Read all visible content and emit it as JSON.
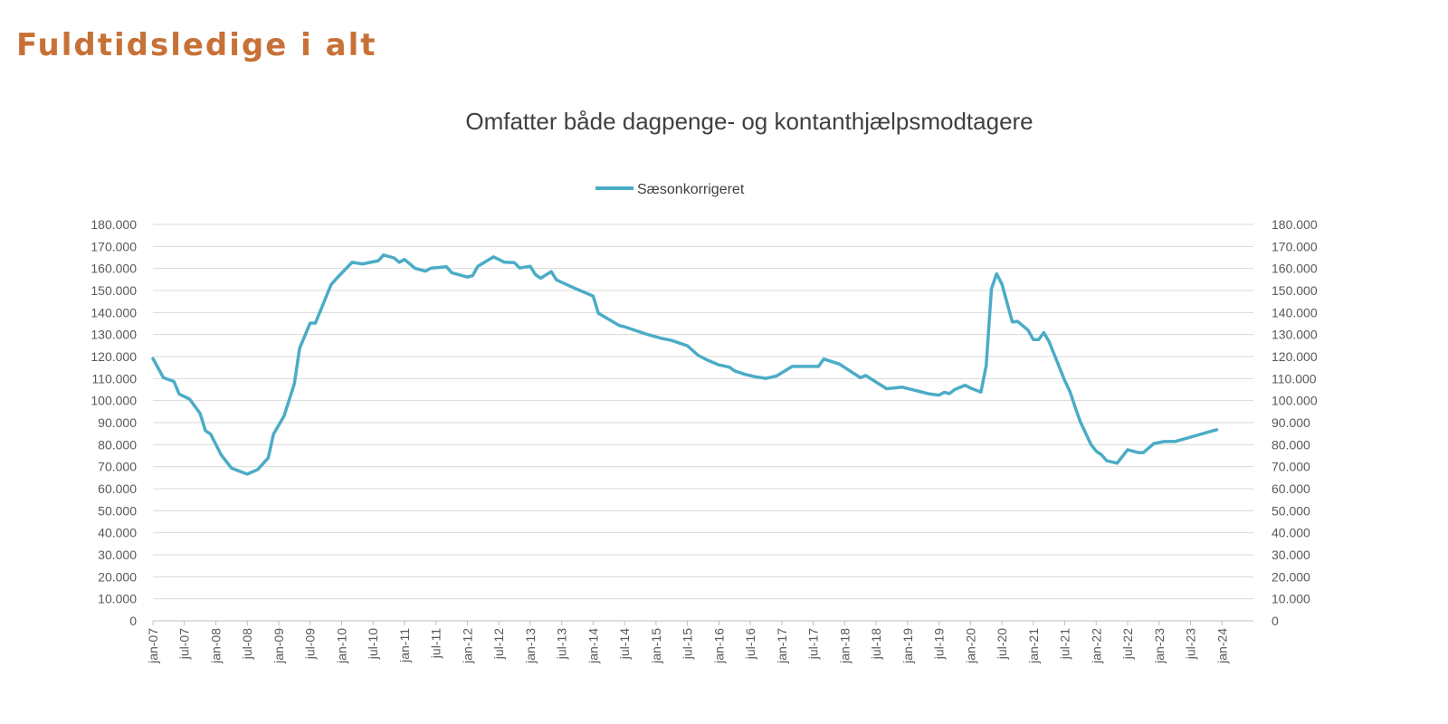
{
  "page": {
    "title": "Fuldtidsledige i alt",
    "title_color": "#C87137"
  },
  "chart_data": {
    "type": "line",
    "title": "Omfatter både dagpenge- og kontanthjælpsmodtagere",
    "xlabel": "",
    "ylabel": "",
    "ylim": [
      0,
      180000
    ],
    "y_ticks": [
      "0",
      "10.000",
      "20.000",
      "30.000",
      "40.000",
      "50.000",
      "60.000",
      "70.000",
      "80.000",
      "90.000",
      "100.000",
      "110.000",
      "120.000",
      "130.000",
      "140.000",
      "150.000",
      "160.000",
      "170.000",
      "180.000"
    ],
    "y_tick_step": 10000,
    "y_axis_both_sides": true,
    "x_ticks": [
      "jan-07",
      "jul-07",
      "jan-08",
      "jul-08",
      "jan-09",
      "jul-09",
      "jan-10",
      "jul-10",
      "jan-11",
      "jul-11",
      "jan-12",
      "jul-12",
      "jan-13",
      "jul-13",
      "jan-14",
      "jul-14",
      "jan-15",
      "jul-15",
      "jan-16",
      "jul-16",
      "jan-17",
      "jul-17",
      "jan-18",
      "jul-18",
      "jan-19",
      "jul-19",
      "jan-20",
      "jul-20",
      "jan-21",
      "jul-21",
      "jan-22",
      "jul-22",
      "jan-23",
      "jul-23",
      "jan-24"
    ],
    "xlim": [
      "2007-01",
      "2024-07"
    ],
    "grid": true,
    "legend_position": "top",
    "series": [
      {
        "name": "Sæsonkorrigeret",
        "color": "#4BACC6",
        "x": [
          "2007-01",
          "2007-03",
          "2007-05",
          "2007-06",
          "2007-08",
          "2007-10",
          "2007-11",
          "2007-12",
          "2008-02",
          "2008-04",
          "2008-07",
          "2008-09",
          "2008-11",
          "2008-12",
          "2009-02",
          "2009-04",
          "2009-05",
          "2009-07",
          "2009-08",
          "2009-11",
          "2009-12",
          "2010-03",
          "2010-05",
          "2010-08",
          "2010-09",
          "2010-11",
          "2010-12",
          "2011-01",
          "2011-03",
          "2011-05",
          "2011-06",
          "2011-09",
          "2011-10",
          "2012-01",
          "2012-02",
          "2012-03",
          "2012-06",
          "2012-08",
          "2012-10",
          "2012-11",
          "2013-01",
          "2013-02",
          "2013-03",
          "2013-05",
          "2013-06",
          "2013-10",
          "2014-01",
          "2014-02",
          "2014-06",
          "2014-07",
          "2014-11",
          "2015-02",
          "2015-04",
          "2015-07",
          "2015-09",
          "2015-11",
          "2016-01",
          "2016-03",
          "2016-04",
          "2016-06",
          "2016-08",
          "2016-10",
          "2016-12",
          "2017-03",
          "2017-08",
          "2017-09",
          "2017-12",
          "2018-04",
          "2018-05",
          "2018-09",
          "2018-12",
          "2019-05",
          "2019-07",
          "2019-08",
          "2019-09",
          "2019-10",
          "2019-12",
          "2020-01",
          "2020-03",
          "2020-04",
          "2020-05",
          "2020-06",
          "2020-07",
          "2020-09",
          "2020-10",
          "2020-12",
          "2021-01",
          "2021-02",
          "2021-03",
          "2021-04",
          "2021-07",
          "2021-08",
          "2021-09",
          "2021-10",
          "2021-12",
          "2022-01",
          "2022-02",
          "2022-03",
          "2022-05",
          "2022-07",
          "2022-09",
          "2022-10",
          "2022-12",
          "2023-02",
          "2023-04",
          "2023-12"
        ],
        "y": [
          119100,
          110400,
          108700,
          103000,
          100700,
          94200,
          86400,
          84800,
          75400,
          69300,
          66600,
          68700,
          74000,
          84800,
          92900,
          107700,
          123800,
          135200,
          135200,
          152700,
          155400,
          162800,
          162100,
          163500,
          166100,
          164800,
          162800,
          164100,
          160100,
          158800,
          160100,
          160800,
          158100,
          156100,
          156700,
          161000,
          165300,
          162900,
          162600,
          160200,
          161000,
          157200,
          155600,
          158600,
          154800,
          150500,
          147500,
          139700,
          134100,
          133500,
          130300,
          128300,
          127300,
          124900,
          120600,
          118200,
          116200,
          115200,
          113500,
          111900,
          110800,
          110100,
          111200,
          115500,
          115500,
          118900,
          116600,
          110400,
          111400,
          105400,
          106100,
          103100,
          102500,
          103800,
          103200,
          105000,
          107000,
          105700,
          103900,
          115800,
          150800,
          157600,
          152900,
          135700,
          136000,
          132000,
          127700,
          127700,
          130900,
          126800,
          109100,
          104100,
          96900,
          90200,
          80100,
          77000,
          75400,
          72700,
          71600,
          77700,
          76400,
          76400,
          80500,
          81400,
          81400,
          86800
        ]
      }
    ]
  }
}
